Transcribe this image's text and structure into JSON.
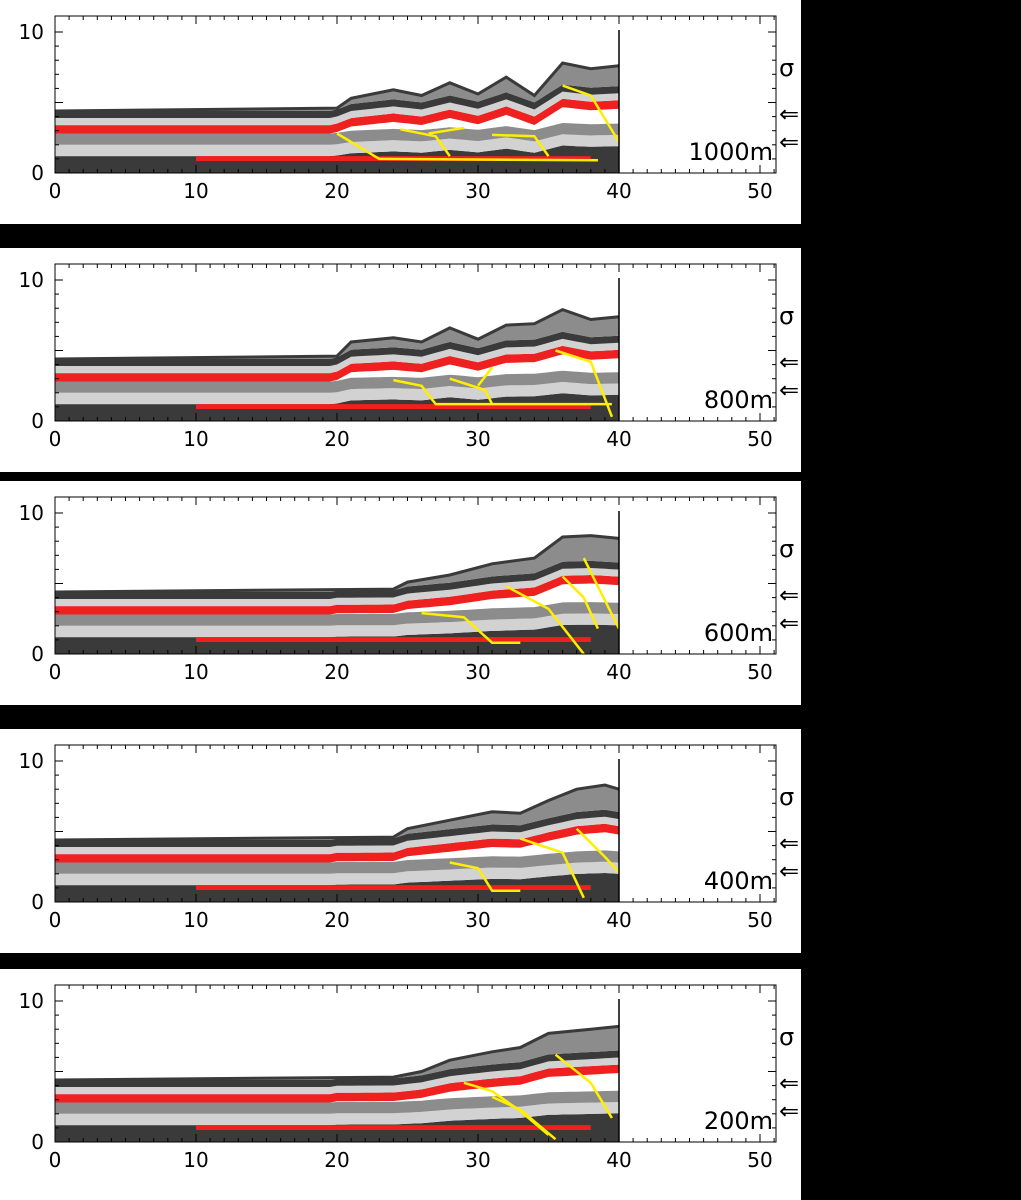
{
  "axis": {
    "x_ticks": [
      "0",
      "10",
      "20",
      "30",
      "40",
      "50"
    ],
    "y_ticks": [
      "0",
      "10"
    ],
    "xlim": [
      0,
      51
    ],
    "ylim": [
      0,
      10
    ]
  },
  "colors": {
    "dark_layer": "#3a3a3a",
    "mid_layer": "#8c8c8c",
    "light_layer": "#d2d2d2",
    "weak_layer": "#ee2020",
    "fault": "#ffee00",
    "background": "#ffffff",
    "frame": "#000000"
  },
  "side_labels": {
    "top": "σ",
    "arrow": "⇐"
  },
  "panels": [
    {
      "label": "1000m",
      "surface": [
        [
          0,
          4.4
        ],
        [
          20,
          4.6
        ],
        [
          21,
          5.3
        ],
        [
          24,
          5.9
        ],
        [
          26,
          5.5
        ],
        [
          28,
          6.4
        ],
        [
          30,
          5.6
        ],
        [
          32,
          6.8
        ],
        [
          34,
          5.5
        ],
        [
          36,
          7.8
        ],
        [
          38,
          7.4
        ],
        [
          40,
          7.6
        ]
      ],
      "faults": [
        [
          [
            20,
            2.8
          ],
          [
            23,
            1.0
          ],
          [
            38.5,
            0.9
          ]
        ],
        [
          [
            24.5,
            3.1
          ],
          [
            27,
            2.6
          ],
          [
            28,
            1.2
          ]
        ],
        [
          [
            26.5,
            2.8
          ],
          [
            29,
            3.2
          ]
        ],
        [
          [
            31,
            2.7
          ],
          [
            34,
            2.6
          ],
          [
            35,
            1.2
          ]
        ],
        [
          [
            36,
            6.2
          ],
          [
            38,
            5.5
          ],
          [
            40,
            2.2
          ]
        ]
      ]
    },
    {
      "label": "800m",
      "surface": [
        [
          0,
          4.4
        ],
        [
          20,
          4.6
        ],
        [
          21,
          5.6
        ],
        [
          24,
          5.9
        ],
        [
          26,
          5.6
        ],
        [
          28,
          6.6
        ],
        [
          30,
          5.8
        ],
        [
          32,
          6.8
        ],
        [
          34,
          6.9
        ],
        [
          36,
          7.9
        ],
        [
          38,
          7.2
        ],
        [
          40,
          7.4
        ]
      ],
      "faults": [
        [
          [
            24,
            2.9
          ],
          [
            26,
            2.5
          ],
          [
            27,
            1.2
          ],
          [
            39.5,
            1.2
          ]
        ],
        [
          [
            28,
            3.0
          ],
          [
            30.5,
            2.2
          ],
          [
            31,
            1.2
          ]
        ],
        [
          [
            30,
            2.5
          ],
          [
            31,
            3.8
          ]
        ],
        [
          [
            35.5,
            5.0
          ],
          [
            38,
            4.2
          ],
          [
            39.5,
            0.3
          ]
        ]
      ]
    },
    {
      "label": "600m",
      "surface": [
        [
          0,
          4.4
        ],
        [
          24,
          4.6
        ],
        [
          25,
          5.1
        ],
        [
          28,
          5.6
        ],
        [
          31,
          6.4
        ],
        [
          34,
          6.8
        ],
        [
          36,
          8.3
        ],
        [
          38,
          8.4
        ],
        [
          40,
          8.2
        ]
      ],
      "faults": [
        [
          [
            26,
            2.9
          ],
          [
            29,
            2.6
          ],
          [
            31,
            0.8
          ],
          [
            33,
            0.8
          ]
        ],
        [
          [
            32,
            4.8
          ],
          [
            35,
            3.2
          ],
          [
            37.5,
            0
          ]
        ],
        [
          [
            36,
            5.5
          ],
          [
            37.5,
            4.0
          ],
          [
            38.5,
            1.8
          ]
        ],
        [
          [
            37.5,
            6.8
          ],
          [
            39,
            3.8
          ],
          [
            40,
            1.8
          ]
        ]
      ]
    },
    {
      "label": "400m",
      "surface": [
        [
          0,
          4.4
        ],
        [
          24,
          4.6
        ],
        [
          25,
          5.2
        ],
        [
          28,
          5.8
        ],
        [
          31,
          6.4
        ],
        [
          33,
          6.3
        ],
        [
          35,
          7.2
        ],
        [
          37,
          8.0
        ],
        [
          39,
          8.3
        ],
        [
          40,
          8.0
        ]
      ],
      "faults": [
        [
          [
            28,
            2.8
          ],
          [
            30,
            2.4
          ],
          [
            31,
            0.8
          ],
          [
            33,
            0.8
          ]
        ],
        [
          [
            33,
            4.5
          ],
          [
            36,
            3.5
          ],
          [
            37.5,
            0.3
          ]
        ],
        [
          [
            37,
            5.2
          ],
          [
            39,
            3.2
          ],
          [
            40,
            2.1
          ]
        ]
      ]
    },
    {
      "label": "200m",
      "surface": [
        [
          0,
          4.4
        ],
        [
          24,
          4.6
        ],
        [
          26,
          5.0
        ],
        [
          28,
          5.8
        ],
        [
          31,
          6.4
        ],
        [
          33,
          6.7
        ],
        [
          35,
          7.7
        ],
        [
          38,
          8.0
        ],
        [
          40,
          8.2
        ]
      ],
      "faults": [
        [
          [
            29,
            4.2
          ],
          [
            31,
            3.6
          ],
          [
            33,
            2.2
          ],
          [
            35,
            0.5
          ]
        ],
        [
          [
            31,
            3.2
          ],
          [
            33,
            2.3
          ],
          [
            35.5,
            0.2
          ]
        ],
        [
          [
            35.5,
            6.2
          ],
          [
            38,
            4.2
          ],
          [
            39.5,
            1.7
          ]
        ]
      ]
    }
  ]
}
